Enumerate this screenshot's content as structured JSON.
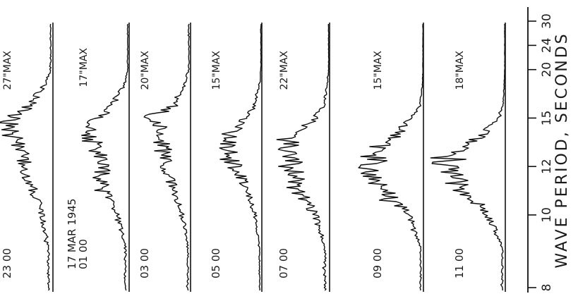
{
  "chart_data": {
    "type": "line",
    "orientation": "rotated-90-ccw",
    "xlabel": "WAVE PERIOD, SECONDS",
    "x_scale": "reciprocal",
    "xlim": [
      8,
      30
    ],
    "x_ticks": [
      8,
      10,
      12,
      15,
      20,
      24,
      30
    ],
    "date_label": "17 MAR 1945",
    "series": [
      {
        "name": "23 00",
        "max_label": "27\"MAX",
        "peaks": [
          [
            9,
            0.1
          ],
          [
            10,
            0.25
          ],
          [
            11,
            0.45
          ],
          [
            12,
            0.6
          ],
          [
            13,
            0.75
          ],
          [
            14,
            0.95
          ],
          [
            15,
            0.85
          ],
          [
            16,
            0.5
          ],
          [
            18,
            0.2
          ],
          [
            20,
            0.05
          ]
        ]
      },
      {
        "name": "01 00",
        "max_label": "17\"MAX",
        "peaks": [
          [
            9,
            0.08
          ],
          [
            10,
            0.22
          ],
          [
            11,
            0.55
          ],
          [
            12,
            0.5
          ],
          [
            13,
            0.7
          ],
          [
            14,
            0.85
          ],
          [
            15,
            0.6
          ],
          [
            16,
            0.35
          ],
          [
            18,
            0.1
          ],
          [
            20,
            0.03
          ]
        ]
      },
      {
        "name": "03 00",
        "max_label": "20\"MAX",
        "peaks": [
          [
            9,
            0.06
          ],
          [
            10,
            0.18
          ],
          [
            11,
            0.4
          ],
          [
            12,
            0.55
          ],
          [
            13,
            0.6
          ],
          [
            14,
            0.65
          ],
          [
            15,
            0.9
          ],
          [
            16,
            0.4
          ],
          [
            18,
            0.15
          ],
          [
            20,
            0.04
          ]
        ]
      },
      {
        "name": "05 00",
        "max_label": "15\"MAX",
        "peaks": [
          [
            9,
            0.05
          ],
          [
            10,
            0.15
          ],
          [
            11,
            0.35
          ],
          [
            12,
            0.55
          ],
          [
            13,
            0.8
          ],
          [
            14,
            0.65
          ],
          [
            15,
            0.35
          ],
          [
            16,
            0.15
          ],
          [
            18,
            0.05
          ],
          [
            20,
            0.02
          ]
        ]
      },
      {
        "name": "07 00",
        "max_label": "22\"MAX",
        "peaks": [
          [
            9,
            0.1
          ],
          [
            10,
            0.3
          ],
          [
            11,
            0.7
          ],
          [
            12,
            0.75
          ],
          [
            13,
            0.9
          ],
          [
            14,
            0.6
          ],
          [
            15,
            0.3
          ],
          [
            16,
            0.12
          ],
          [
            18,
            0.05
          ],
          [
            20,
            0.02
          ]
        ]
      },
      {
        "name": "09 00",
        "max_label": "15\"MAX",
        "peaks": [
          [
            9,
            0.05
          ],
          [
            10,
            0.25
          ],
          [
            11,
            0.75
          ],
          [
            12,
            0.95
          ],
          [
            13,
            0.7
          ],
          [
            14,
            0.45
          ],
          [
            15,
            0.2
          ],
          [
            16,
            0.06
          ],
          [
            18,
            0.02
          ],
          [
            20,
            0.01
          ]
        ]
      },
      {
        "name": "11 00",
        "max_label": "18\"MAX",
        "peaks": [
          [
            9,
            0.05
          ],
          [
            10,
            0.3
          ],
          [
            11,
            0.7
          ],
          [
            12,
            0.9
          ],
          [
            13,
            0.65
          ],
          [
            14,
            0.35
          ],
          [
            15,
            0.1
          ],
          [
            16,
            0.04
          ],
          [
            18,
            0.02
          ],
          [
            20,
            0.01
          ]
        ]
      }
    ]
  }
}
